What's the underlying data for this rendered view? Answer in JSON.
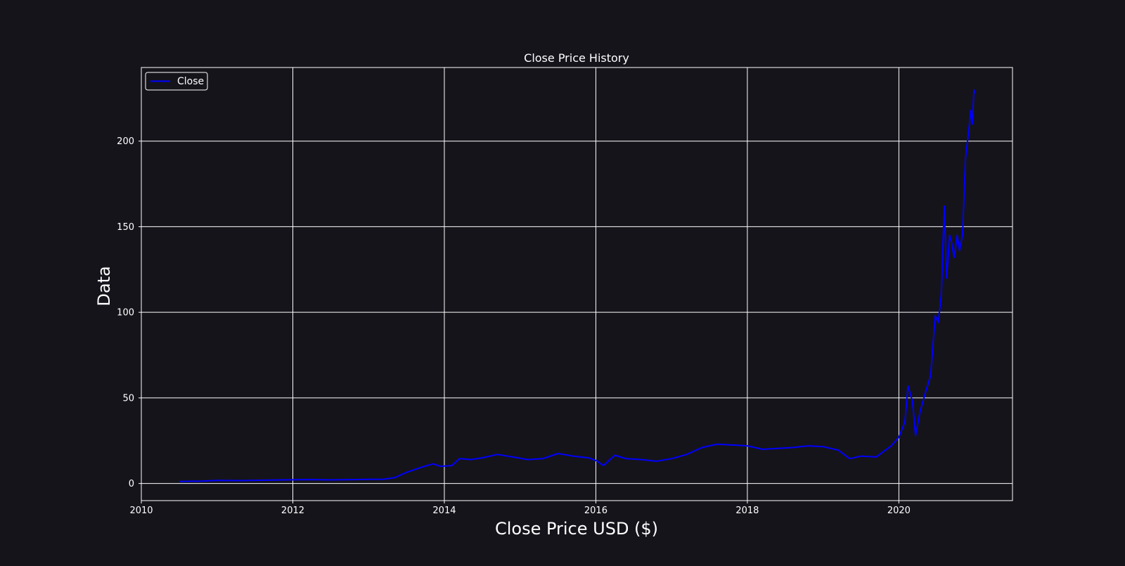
{
  "chart_data": {
    "type": "line",
    "title": "Close Price History",
    "xlabel": "Close Price USD ($)",
    "ylabel": "Data",
    "xlim": [
      2010.0,
      2021.5
    ],
    "ylim": [
      -10,
      243
    ],
    "x_ticks": [
      2010,
      2012,
      2014,
      2016,
      2018,
      2020
    ],
    "x_tick_labels": [
      "2010",
      "2012",
      "2014",
      "2016",
      "2018",
      "2020"
    ],
    "y_ticks": [
      0,
      50,
      100,
      150,
      200
    ],
    "y_tick_labels": [
      "0",
      "50",
      "100",
      "150",
      "200"
    ],
    "grid": true,
    "legend_position": "top-left",
    "series": [
      {
        "name": "Close",
        "color": "#0000ff",
        "x": [
          2010.5,
          2010.8,
          2011.0,
          2011.3,
          2011.6,
          2011.9,
          2012.2,
          2012.5,
          2012.8,
          2013.0,
          2013.2,
          2013.35,
          2013.5,
          2013.7,
          2013.85,
          2013.95,
          2014.1,
          2014.2,
          2014.35,
          2014.5,
          2014.7,
          2014.9,
          2015.1,
          2015.3,
          2015.5,
          2015.7,
          2015.9,
          2016.0,
          2016.1,
          2016.25,
          2016.4,
          2016.6,
          2016.8,
          2017.0,
          2017.2,
          2017.4,
          2017.6,
          2017.8,
          2018.0,
          2018.2,
          2018.4,
          2018.6,
          2018.8,
          2019.0,
          2019.2,
          2019.35,
          2019.5,
          2019.7,
          2019.9,
          2020.0,
          2020.08,
          2020.12,
          2020.18,
          2020.22,
          2020.28,
          2020.35,
          2020.42,
          2020.48,
          2020.52,
          2020.56,
          2020.6,
          2020.63,
          2020.67,
          2020.7,
          2020.73,
          2020.77,
          2020.8,
          2020.84,
          2020.88,
          2020.92,
          2020.95,
          2020.97,
          2020.99,
          2021.0
        ],
        "values": [
          1.2,
          1.4,
          1.8,
          1.7,
          1.9,
          2.1,
          2.3,
          2.1,
          2.3,
          2.4,
          2.5,
          3.5,
          6.5,
          9.5,
          11.5,
          10.0,
          10.5,
          14.5,
          14.0,
          15.0,
          17.0,
          15.5,
          14.0,
          14.5,
          17.5,
          16.0,
          15.0,
          13.5,
          10.5,
          16.5,
          14.5,
          14.0,
          13.0,
          14.5,
          17.0,
          21.0,
          23.0,
          22.5,
          22.0,
          20.0,
          20.5,
          21.0,
          22.0,
          21.5,
          19.5,
          14.5,
          16.0,
          15.5,
          22.0,
          27.0,
          36.0,
          57.0,
          48.0,
          28.0,
          42.0,
          53.0,
          63.0,
          98.0,
          94.0,
          110.0,
          162.0,
          120.0,
          145.0,
          140.0,
          132.0,
          145.0,
          136.0,
          145.0,
          190.0,
          205.0,
          218.0,
          210.0,
          230.0,
          228.0
        ]
      }
    ]
  }
}
